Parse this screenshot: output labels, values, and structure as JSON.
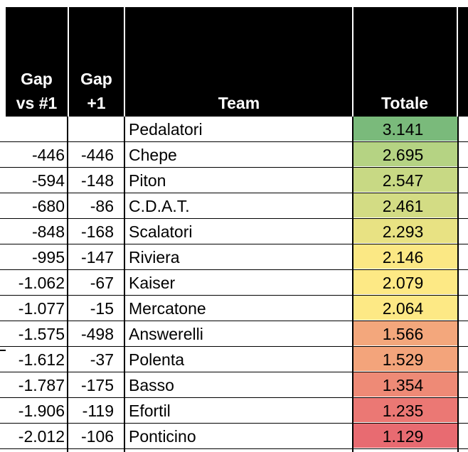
{
  "table": {
    "headers": {
      "gap_vs_first": [
        "Gap",
        "vs #1"
      ],
      "gap_prev": [
        "Gap",
        "+1"
      ],
      "team": "Team",
      "total": "Totale"
    },
    "rows": [
      {
        "gap_vs_first": "",
        "gap_prev": "",
        "team": "Pedalatori",
        "total": "3.141",
        "color": "#7aba7b"
      },
      {
        "gap_vs_first": "-446",
        "gap_prev": "-446",
        "team": "Chepe",
        "total": "2.695",
        "color": "#b5d383"
      },
      {
        "gap_vs_first": "-594",
        "gap_prev": "-148",
        "team": "Piton",
        "total": "2.547",
        "color": "#c8d984"
      },
      {
        "gap_vs_first": "-680",
        "gap_prev": "-86",
        "team": "C.D.A.T.",
        "total": "2.461",
        "color": "#d3dc84"
      },
      {
        "gap_vs_first": "-848",
        "gap_prev": "-168",
        "team": "Scalatori",
        "total": "2.293",
        "color": "#e8e283"
      },
      {
        "gap_vs_first": "-995",
        "gap_prev": "-147",
        "team": "Riviera",
        "total": "2.146",
        "color": "#fbe884"
      },
      {
        "gap_vs_first": "-1.062",
        "gap_prev": "-67",
        "team": "Kaiser",
        "total": "2.079",
        "color": "#fde985"
      },
      {
        "gap_vs_first": "-1.077",
        "gap_prev": "-15",
        "team": "Mercatone",
        "total": "2.064",
        "color": "#fde985"
      },
      {
        "gap_vs_first": "-1.575",
        "gap_prev": "-498",
        "team": "Answerelli",
        "total": "1.566",
        "color": "#f3a77c"
      },
      {
        "gap_vs_first": "-1.612",
        "gap_prev": "-37",
        "team": "Polenta",
        "total": "1.529",
        "color": "#f3a47b"
      },
      {
        "gap_vs_first": "-1.787",
        "gap_prev": "-175",
        "team": "Basso",
        "total": "1.354",
        "color": "#ee8a76"
      },
      {
        "gap_vs_first": "-1.906",
        "gap_prev": "-119",
        "team": "Efortil",
        "total": "1.235",
        "color": "#eb7874"
      },
      {
        "gap_vs_first": "-2.012",
        "gap_prev": "-106",
        "team": "Ponticino",
        "total": "1.129",
        "color": "#e86b71"
      }
    ]
  }
}
